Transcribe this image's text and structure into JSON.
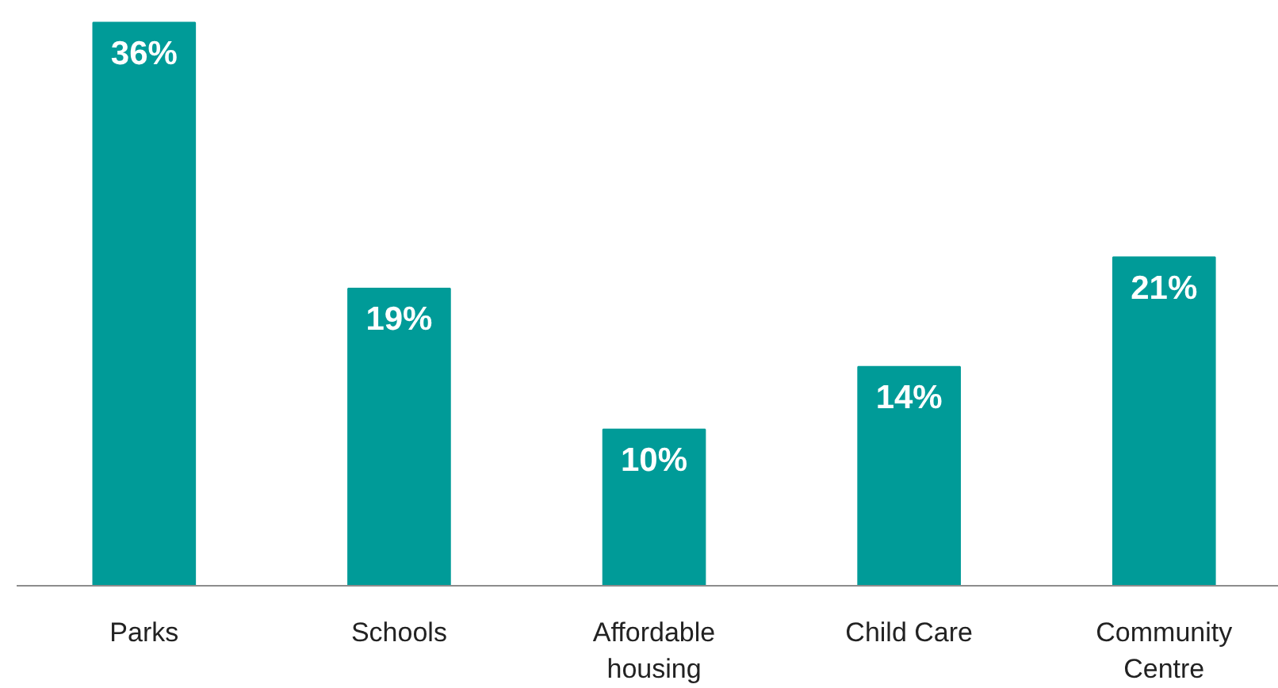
{
  "chart_data": {
    "type": "bar",
    "categories": [
      "Parks",
      "Schools",
      "Affordable housing",
      "Child Care",
      "Community Centre"
    ],
    "values": [
      36,
      19,
      10,
      14,
      21
    ],
    "value_labels": [
      "36%",
      "19%",
      "10%",
      "14%",
      "21%"
    ],
    "color": "#009b98"
  }
}
